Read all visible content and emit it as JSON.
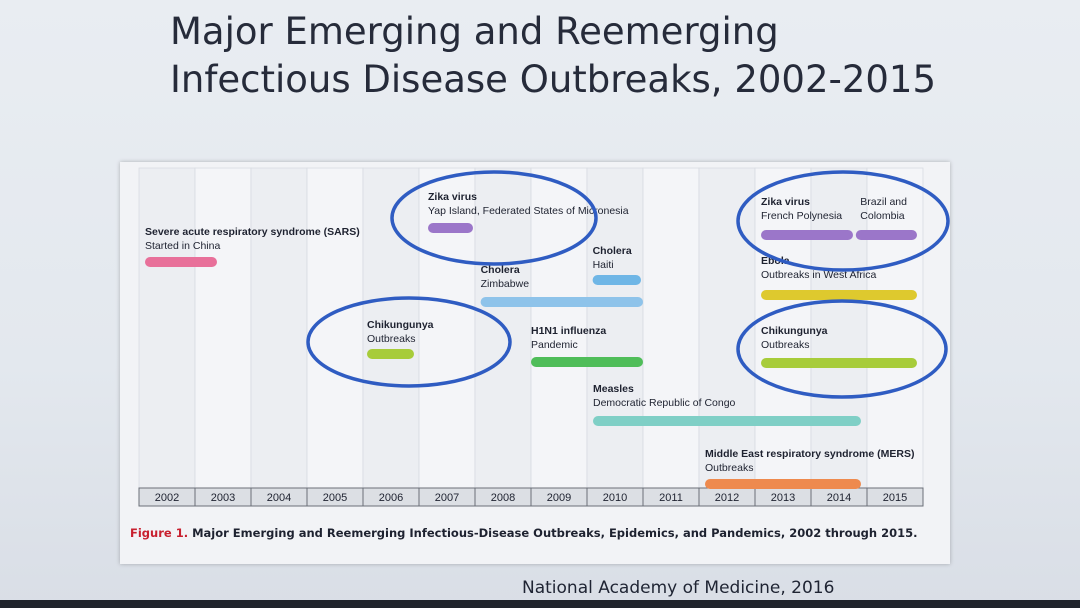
{
  "slide": {
    "title_line1": "Major Emerging and Reemerging",
    "title_line2": "Infectious Disease Outbreaks, 2002-2015",
    "source": "National Academy of Medicine, 2016"
  },
  "chart_data": {
    "type": "timeline",
    "x_range": [
      2002,
      2015
    ],
    "years": [
      "2002",
      "2003",
      "2004",
      "2005",
      "2006",
      "2007",
      "2008",
      "2009",
      "2010",
      "2011",
      "2012",
      "2013",
      "2014",
      "2015"
    ],
    "caption_label": "Figure 1.",
    "caption_text": "Major Emerging and Reemerging Infectious-Disease Outbreaks, Epidemics, and Pandemics, 2002 through 2015.",
    "events": [
      {
        "id": "sars",
        "name": "Severe acute respiratory syndrome (SARS)",
        "detail": "Started in China",
        "start": 2002.0,
        "end": 2003.5,
        "color": "#e8709a",
        "row": 0
      },
      {
        "id": "zika-yap",
        "name": "Zika virus",
        "detail": "Yap Island, Federated States of Micronesia",
        "start": 2007.0,
        "end": 2008.0,
        "color": "#9b76c9",
        "row": 1
      },
      {
        "id": "chikungunya-2006",
        "name": "Chikungunya",
        "detail": "Outbreaks",
        "start": 2006.0,
        "end": 2007.0,
        "color": "#a7cc3a",
        "row": 2
      },
      {
        "id": "cholera-zimbabwe",
        "name": "Cholera",
        "detail": "Zimbabwe",
        "start": 2008.0,
        "end": 2011.0,
        "color": "#8ec3ea",
        "row": 3
      },
      {
        "id": "cholera-haiti",
        "name": "Cholera",
        "detail": "Haiti",
        "start": 2010.0,
        "end": 2011.0,
        "color": "#6fb6e6",
        "row": 4
      },
      {
        "id": "h1n1",
        "name": "H1N1 influenza",
        "detail": "Pandemic",
        "start": 2009.0,
        "end": 2011.0,
        "color": "#4fbd59",
        "row": 5
      },
      {
        "id": "measles",
        "name": "Measles",
        "detail": "Democratic Republic of Congo",
        "start": 2010.0,
        "end": 2015.0,
        "color": "#7fcfc6",
        "row": 6
      },
      {
        "id": "mers",
        "name": "Middle East respiratory syndrome (MERS)",
        "detail": "Outbreaks",
        "start": 2012.0,
        "end": 2015.0,
        "color": "#ee8a4e",
        "row": 7
      },
      {
        "id": "zika-fp",
        "name": "Zika virus",
        "detail": "French Polynesia",
        "start": 2013.0,
        "end": 2015.0,
        "color": "#9b76c9",
        "row": 8
      },
      {
        "id": "zika-brazil",
        "name": "",
        "detail": "Brazil and Colombia",
        "start": 2015.0,
        "end": 2016.0,
        "color": "#9b76c9",
        "row": 8
      },
      {
        "id": "ebola",
        "name": "Ebola",
        "detail": "Outbreaks in West Africa",
        "start": 2013.0,
        "end": 2016.0,
        "color": "#dec92e",
        "row": 9
      },
      {
        "id": "chikungunya-2013",
        "name": "Chikungunya",
        "detail": "Outbreaks",
        "start": 2013.0,
        "end": 2016.0,
        "color": "#a7cc3a",
        "row": 10
      }
    ],
    "highlight_circles": [
      {
        "id": "circle-zika-yap",
        "color": "#2f5cc2"
      },
      {
        "id": "circle-zika-fp",
        "color": "#2f5cc2"
      },
      {
        "id": "circle-chik-2006",
        "color": "#2f5cc2"
      },
      {
        "id": "circle-chik-2013",
        "color": "#2f5cc2"
      }
    ]
  }
}
